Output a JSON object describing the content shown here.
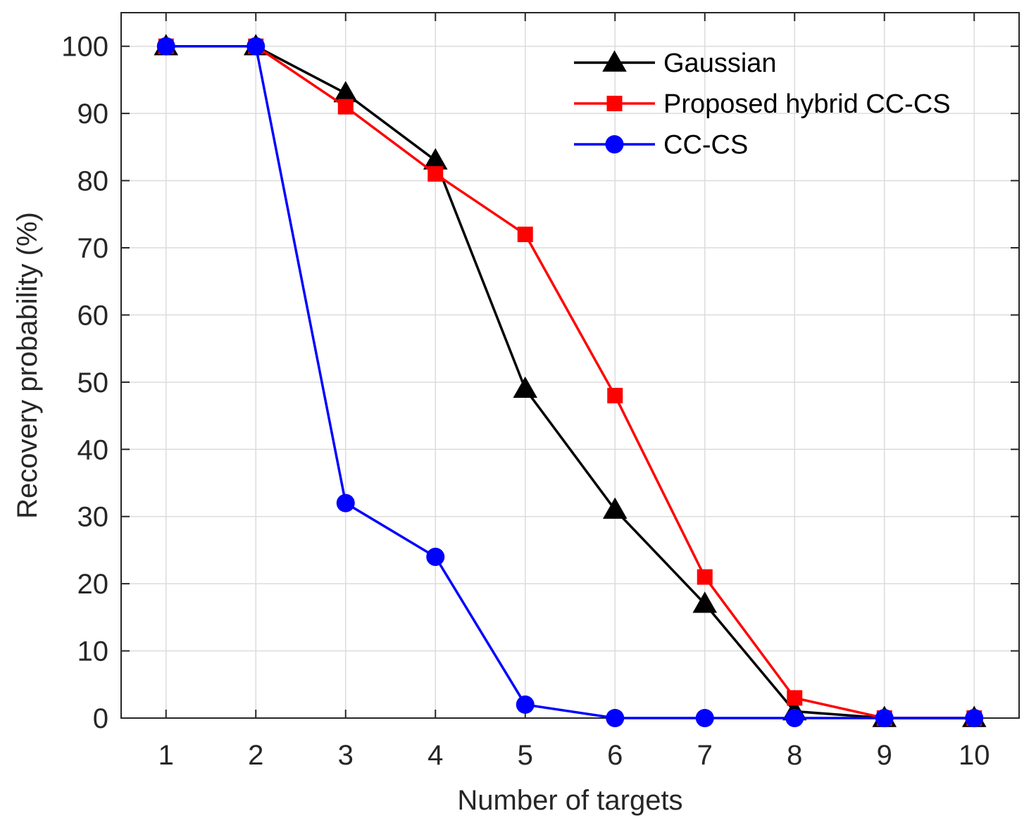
{
  "chart_data": {
    "type": "line",
    "title": "",
    "xlabel": "Number of targets",
    "ylabel": "Recovery probability (%)",
    "x": [
      1,
      2,
      3,
      4,
      5,
      6,
      7,
      8,
      9,
      10
    ],
    "xlim": [
      0.5,
      10.5
    ],
    "ylim": [
      0,
      105
    ],
    "xticks": [
      1,
      2,
      3,
      4,
      5,
      6,
      7,
      8,
      9,
      10
    ],
    "yticks": [
      0,
      10,
      20,
      30,
      40,
      50,
      60,
      70,
      80,
      90,
      100
    ],
    "grid": true,
    "legend_position": "top-right",
    "series": [
      {
        "name": "Gaussian",
        "color": "#000000",
        "marker": "triangle",
        "values": [
          100,
          100,
          93,
          83,
          49,
          31,
          17,
          1,
          0,
          0
        ]
      },
      {
        "name": "Proposed hybrid CC-CS",
        "color": "#ff0000",
        "marker": "square",
        "values": [
          100,
          100,
          91,
          81,
          72,
          48,
          21,
          3,
          0,
          0
        ]
      },
      {
        "name": "CC-CS",
        "color": "#0000ff",
        "marker": "circle",
        "values": [
          100,
          100,
          32,
          24,
          2,
          0,
          0,
          0,
          0,
          0
        ]
      }
    ]
  }
}
